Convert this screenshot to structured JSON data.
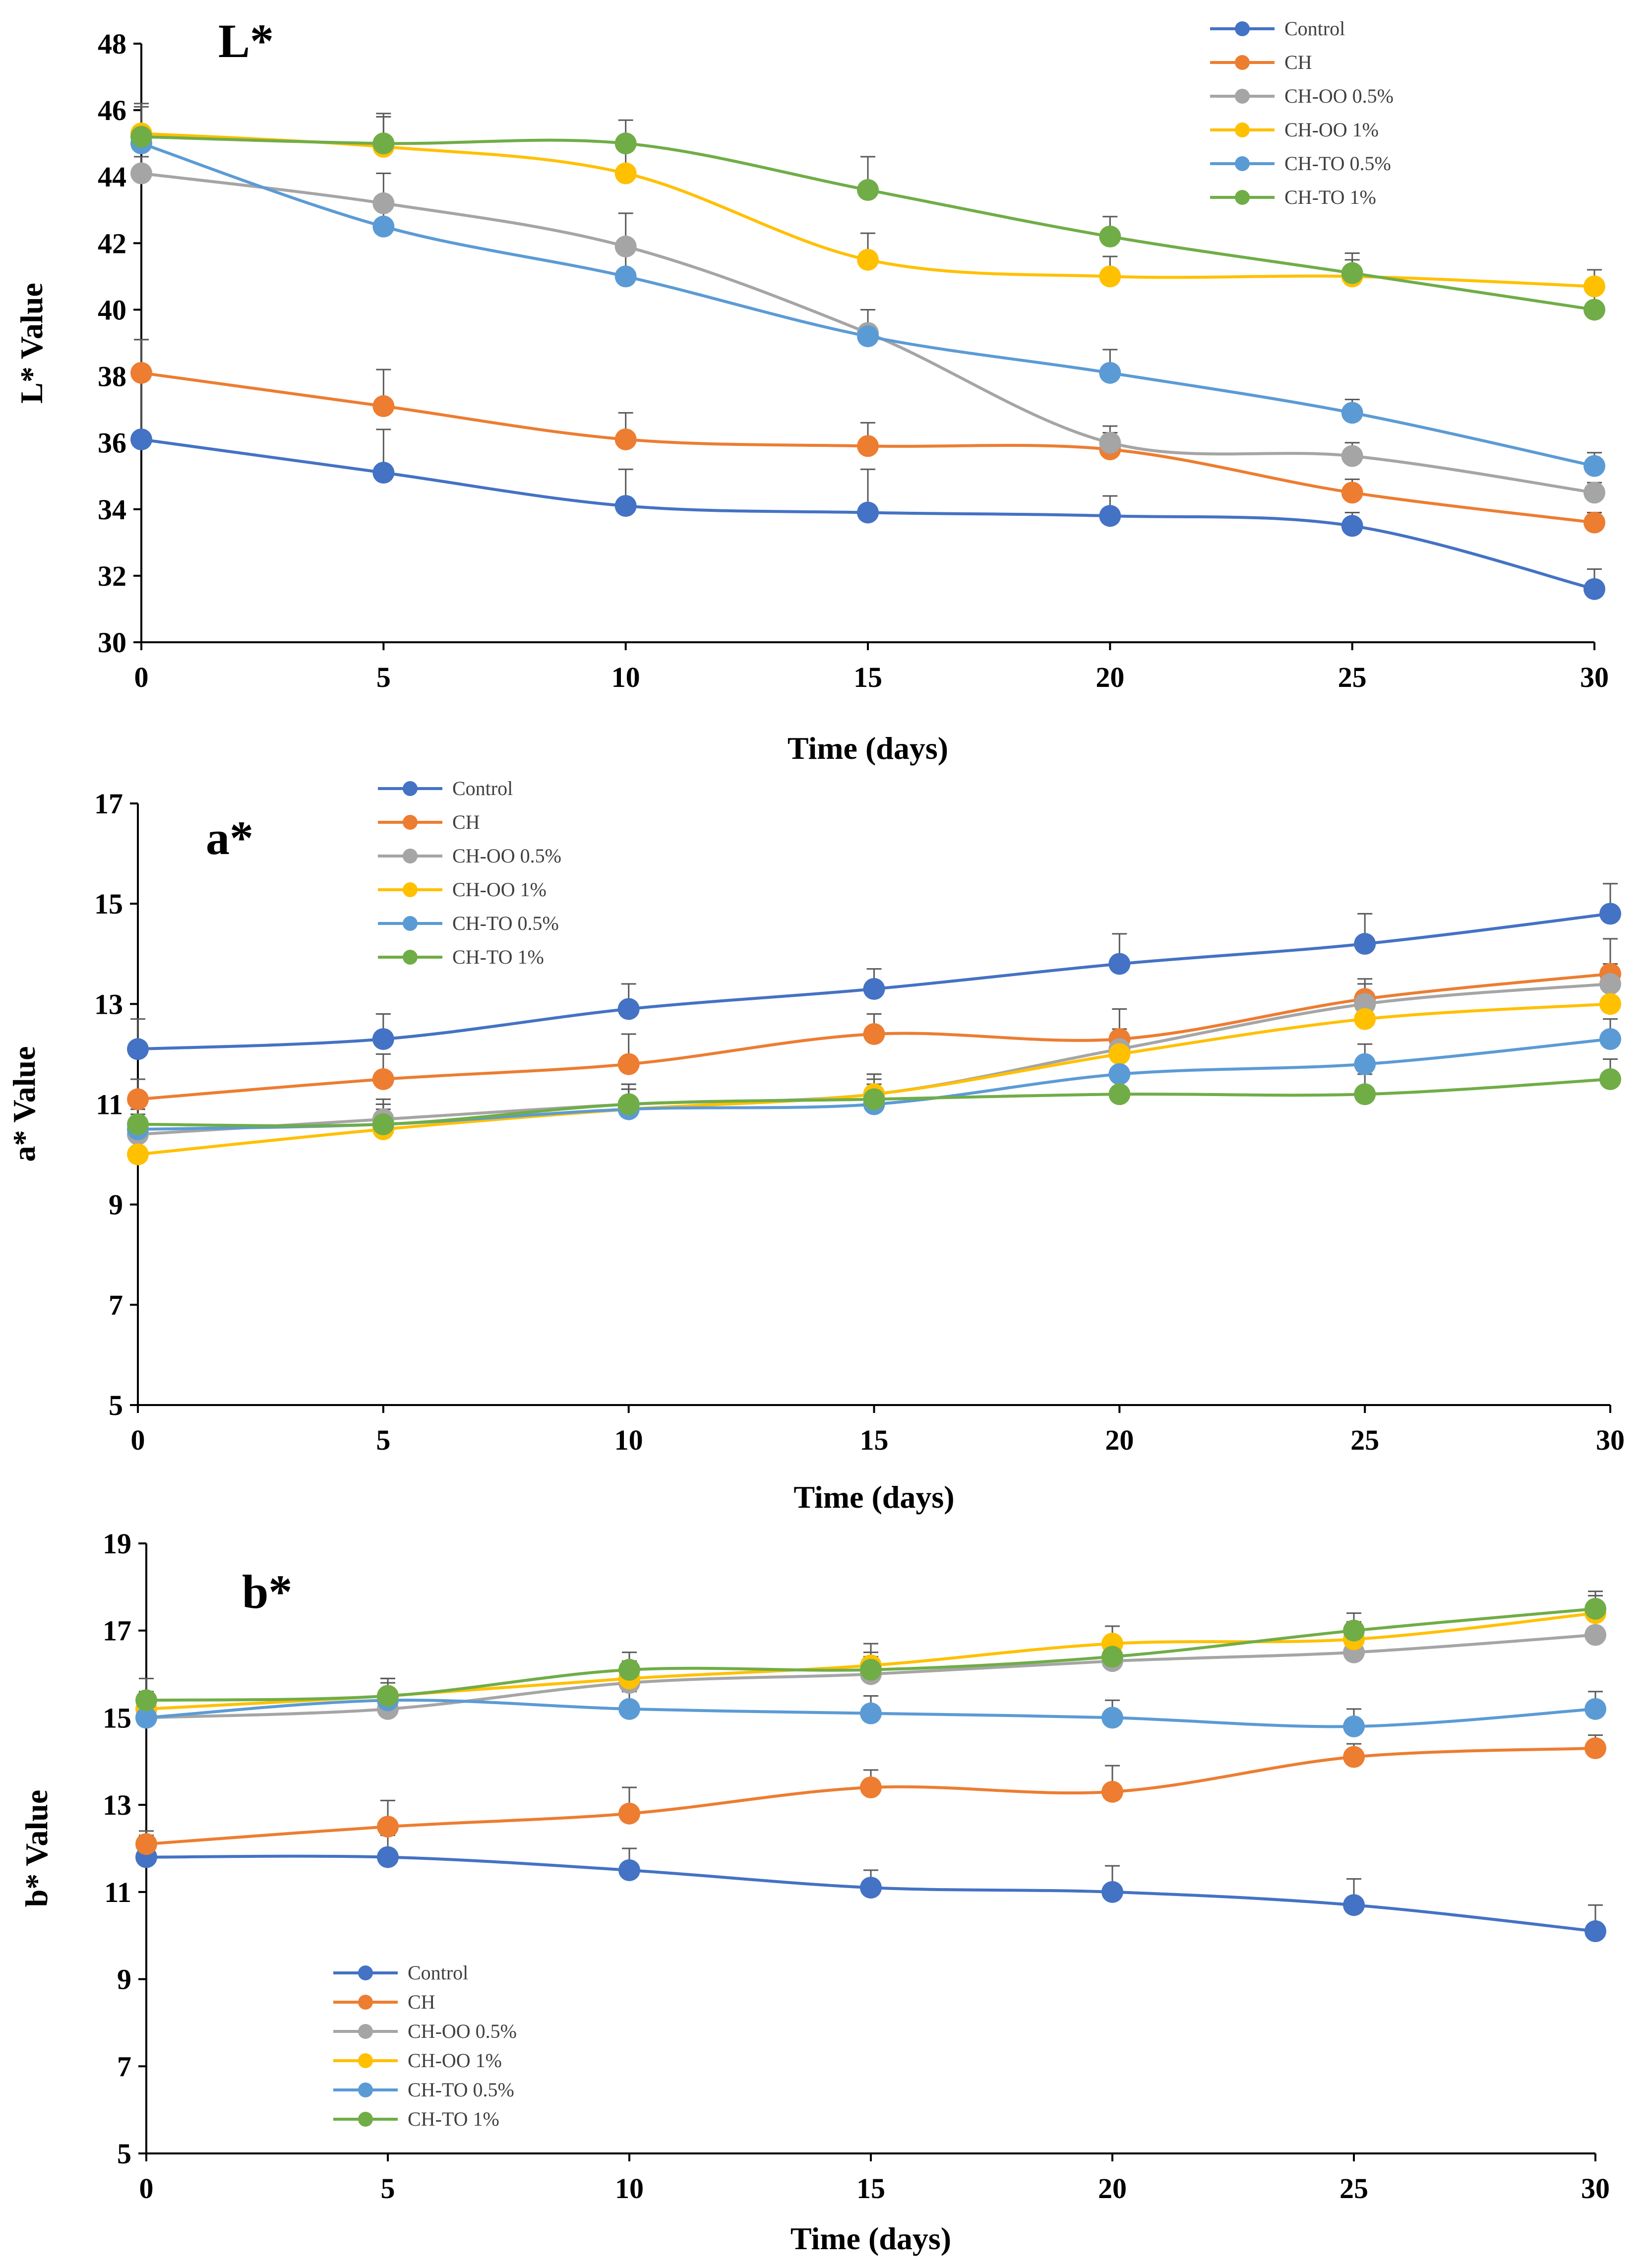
{
  "chart_data": [
    {
      "type": "line",
      "title": "L*",
      "xlabel": "Time (days)",
      "ylabel": "L* Value",
      "x": [
        0,
        5,
        10,
        15,
        20,
        25,
        30
      ],
      "xlim": [
        0,
        30
      ],
      "ylim": [
        30,
        48
      ],
      "xticks": [
        "0",
        "5",
        "10",
        "15",
        "20",
        "25",
        "30"
      ],
      "yticks": [
        "30",
        "32",
        "34",
        "36",
        "38",
        "40",
        "42",
        "44",
        "46",
        "48"
      ],
      "legend_position": "top-right",
      "series": [
        {
          "name": "Control",
          "color": "#4472C4",
          "values": [
            36.1,
            35.1,
            34.1,
            33.9,
            33.8,
            33.5,
            31.6
          ],
          "errors": [
            3.0,
            1.3,
            1.1,
            1.3,
            0.6,
            0.4,
            0.6
          ]
        },
        {
          "name": "CH",
          "color": "#ED7D31",
          "values": [
            38.1,
            37.1,
            36.1,
            35.9,
            35.8,
            34.5,
            33.6
          ],
          "errors": [
            1.0,
            1.1,
            0.8,
            0.7,
            0.5,
            0.4,
            0.3
          ]
        },
        {
          "name": "CH-OO 0.5%",
          "color": "#A5A5A5",
          "values": [
            44.1,
            43.2,
            41.9,
            39.3,
            36.0,
            35.6,
            34.5
          ],
          "errors": [
            0.5,
            0.9,
            1.0,
            0.7,
            0.5,
            0.4,
            0.3
          ]
        },
        {
          "name": "CH-OO 1%",
          "color": "#FFC000",
          "values": [
            45.3,
            44.9,
            44.1,
            41.5,
            41.0,
            41.0,
            40.7
          ],
          "errors": [
            0.9,
            0.9,
            0.9,
            0.8,
            0.6,
            0.5,
            0.5
          ]
        },
        {
          "name": "CH-TO 0.5%",
          "color": "#5B9BD5",
          "values": [
            45.0,
            42.5,
            41.0,
            39.2,
            38.1,
            36.9,
            35.3
          ],
          "errors": [
            0.5,
            0.7,
            0.7,
            0.8,
            0.7,
            0.4,
            0.4
          ]
        },
        {
          "name": "CH-TO 1%",
          "color": "#70AD47",
          "values": [
            45.2,
            45.0,
            45.0,
            43.6,
            42.2,
            41.1,
            40.0
          ],
          "errors": [
            0.9,
            0.9,
            0.7,
            1.0,
            0.6,
            0.6,
            0.6
          ]
        }
      ]
    },
    {
      "type": "line",
      "title": "a*",
      "xlabel": "Time (days)",
      "ylabel": "a* Value",
      "x": [
        0,
        5,
        10,
        15,
        20,
        25,
        30
      ],
      "xlim": [
        0,
        30
      ],
      "ylim": [
        5,
        17
      ],
      "xticks": [
        "0",
        "5",
        "10",
        "15",
        "20",
        "25",
        "30"
      ],
      "yticks": [
        "5",
        "7",
        "9",
        "11",
        "13",
        "15",
        "17"
      ],
      "legend_position": "top-left",
      "series": [
        {
          "name": "Control",
          "color": "#4472C4",
          "values": [
            12.1,
            12.3,
            12.9,
            13.3,
            13.8,
            14.2,
            14.8
          ],
          "errors": [
            0.6,
            0.5,
            0.5,
            0.4,
            0.6,
            0.6,
            0.6
          ]
        },
        {
          "name": "CH",
          "color": "#ED7D31",
          "values": [
            11.1,
            11.5,
            11.8,
            12.4,
            12.3,
            13.1,
            13.6
          ],
          "errors": [
            0.4,
            0.5,
            0.6,
            0.4,
            0.6,
            0.4,
            0.7
          ]
        },
        {
          "name": "CH-OO 0.5%",
          "color": "#A5A5A5",
          "values": [
            10.4,
            10.7,
            11.0,
            11.2,
            12.1,
            13.0,
            13.4
          ],
          "errors": [
            0.4,
            0.4,
            0.4,
            0.4,
            0.4,
            0.4,
            0.4
          ]
        },
        {
          "name": "CH-OO 1%",
          "color": "#FFC000",
          "values": [
            10.0,
            10.5,
            10.9,
            11.2,
            12.0,
            12.7,
            13.0
          ],
          "errors": [
            0.4,
            0.4,
            0.4,
            0.4,
            0.4,
            0.4,
            0.4
          ]
        },
        {
          "name": "CH-TO 0.5%",
          "color": "#5B9BD5",
          "values": [
            10.5,
            10.6,
            10.9,
            11.0,
            11.6,
            11.8,
            12.3
          ],
          "errors": [
            0.4,
            0.4,
            0.4,
            0.4,
            0.4,
            0.4,
            0.4
          ]
        },
        {
          "name": "CH-TO 1%",
          "color": "#70AD47",
          "values": [
            10.6,
            10.6,
            11.0,
            11.1,
            11.2,
            11.2,
            11.5
          ],
          "errors": [
            0.4,
            0.4,
            0.4,
            0.4,
            0.4,
            0.4,
            0.4
          ]
        }
      ]
    },
    {
      "type": "line",
      "title": "b*",
      "xlabel": "Time (days)",
      "ylabel": "b* Value",
      "x": [
        0,
        5,
        10,
        15,
        20,
        25,
        30
      ],
      "xlim": [
        0,
        30
      ],
      "ylim": [
        5,
        19
      ],
      "xticks": [
        "0",
        "5",
        "10",
        "15",
        "20",
        "25",
        "30"
      ],
      "yticks": [
        "5",
        "7",
        "9",
        "11",
        "13",
        "15",
        "17",
        "19"
      ],
      "legend_position": "bottom-left",
      "series": [
        {
          "name": "Control",
          "color": "#4472C4",
          "values": [
            11.8,
            11.8,
            11.5,
            11.1,
            11.0,
            10.7,
            10.1
          ],
          "errors": [
            0.5,
            0.5,
            0.5,
            0.4,
            0.6,
            0.6,
            0.6
          ]
        },
        {
          "name": "CH",
          "color": "#ED7D31",
          "values": [
            12.1,
            12.5,
            12.8,
            13.4,
            13.3,
            14.1,
            14.3
          ],
          "errors": [
            0.3,
            0.6,
            0.6,
            0.4,
            0.6,
            0.3,
            0.3
          ]
        },
        {
          "name": "CH-OO 0.5%",
          "color": "#A5A5A5",
          "values": [
            15.0,
            15.2,
            15.8,
            16.0,
            16.3,
            16.5,
            16.9
          ],
          "errors": [
            0.4,
            0.4,
            0.4,
            0.4,
            0.4,
            0.4,
            0.4
          ]
        },
        {
          "name": "CH-OO 1%",
          "color": "#FFC000",
          "values": [
            15.2,
            15.5,
            15.9,
            16.2,
            16.7,
            16.8,
            17.4
          ],
          "errors": [
            0.4,
            0.4,
            0.4,
            0.5,
            0.4,
            0.4,
            0.4
          ]
        },
        {
          "name": "CH-TO 0.5%",
          "color": "#5B9BD5",
          "values": [
            15.0,
            15.4,
            15.2,
            15.1,
            15.0,
            14.8,
            15.2
          ],
          "errors": [
            0.4,
            0.4,
            0.4,
            0.4,
            0.4,
            0.4,
            0.4
          ]
        },
        {
          "name": "CH-TO 1%",
          "color": "#70AD47",
          "values": [
            15.4,
            15.5,
            16.1,
            16.1,
            16.4,
            17.0,
            17.5
          ],
          "errors": [
            0.5,
            0.4,
            0.4,
            0.4,
            0.4,
            0.4,
            0.4
          ]
        }
      ]
    }
  ]
}
